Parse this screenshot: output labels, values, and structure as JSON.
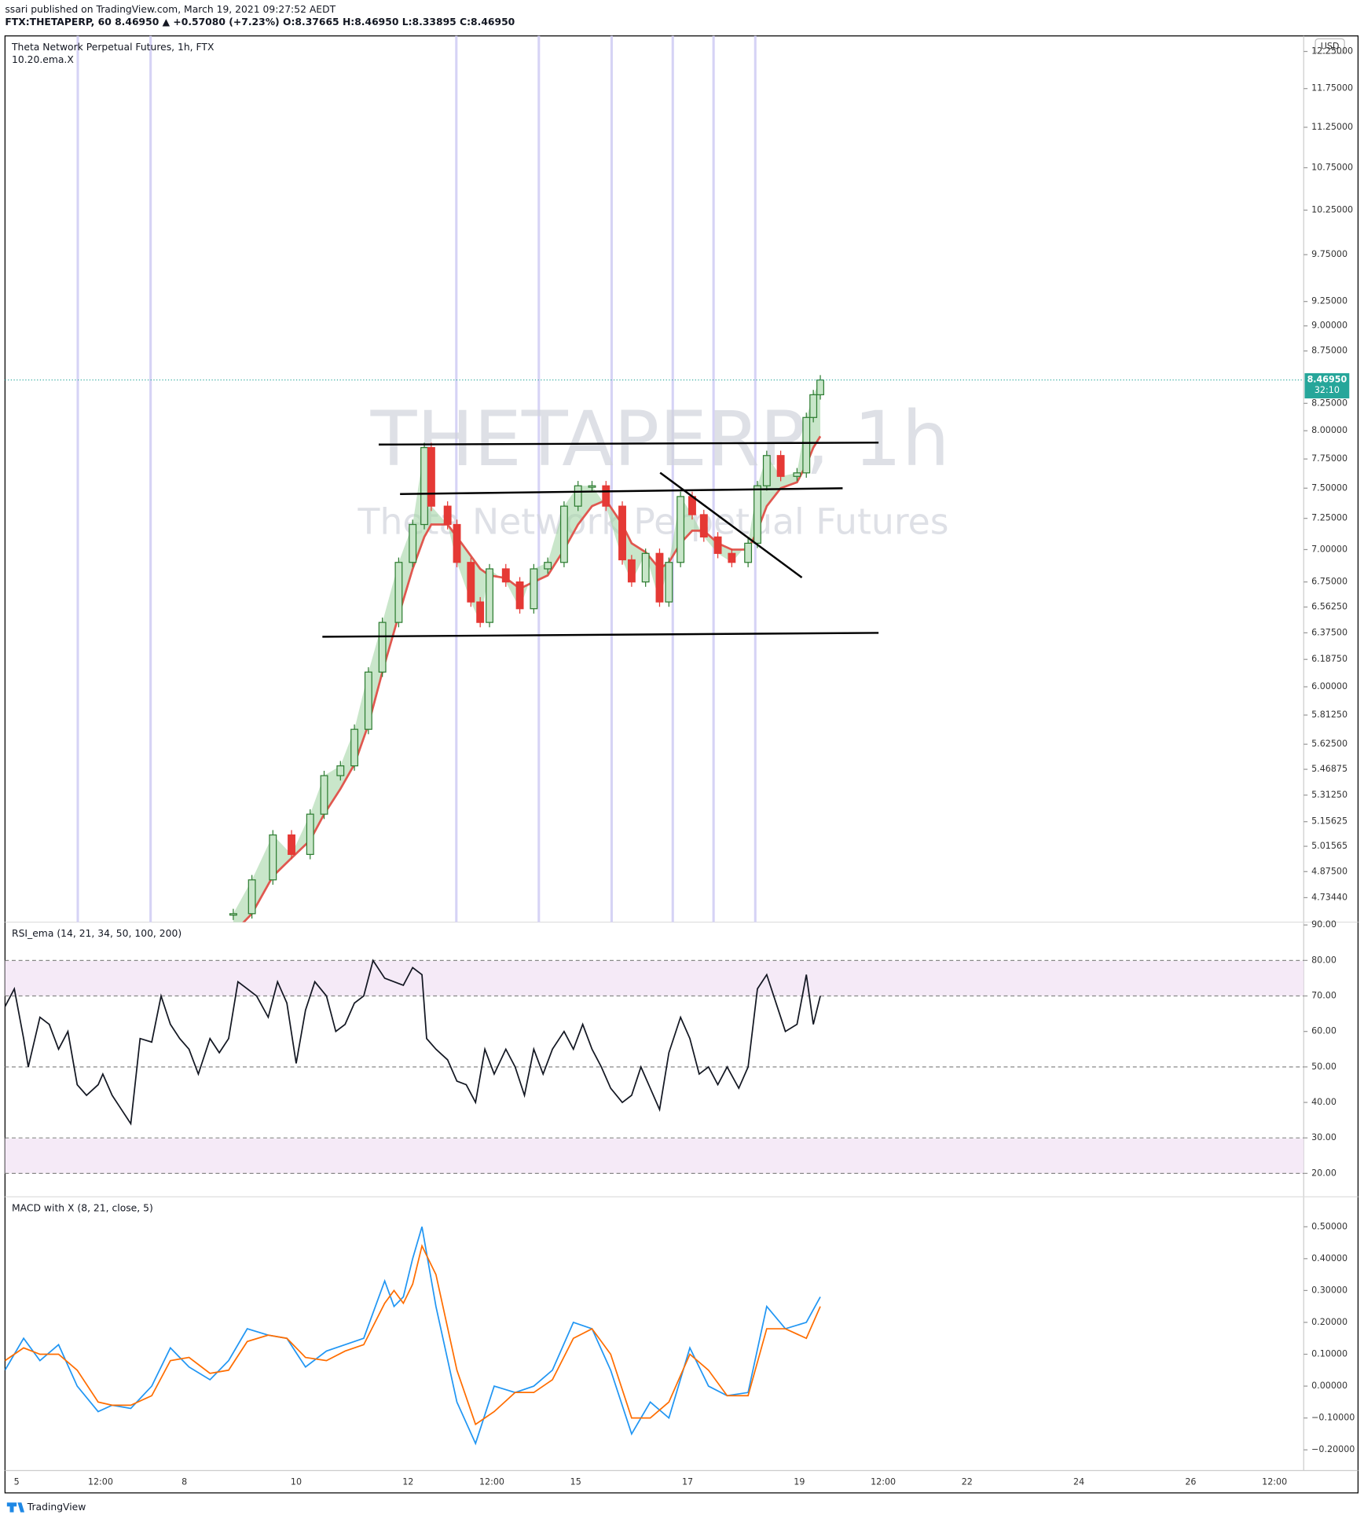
{
  "header": {
    "publisher": "ssari published on TradingView.com, March 19, 2021 09:27:52 AEDT",
    "symbol_line": "FTX:THETAPERP, 60  8.46950 ▲ +0.57080 (+7.23%) O:8.37665 H:8.46950 L:8.33895 C:8.46950"
  },
  "footer": {
    "brand": "TradingView"
  },
  "chart_data": [
    {
      "type": "candlestick",
      "title": "Theta Network Perpetual Futures, 1h, FTX",
      "subtitle": "10.20.ema.X",
      "watermark": "THETAPERP, 1h",
      "watermark_subtitle": "Theta Network Perpetual Futures",
      "currency": "USD",
      "x": [
        93,
        101,
        110,
        118,
        126,
        132,
        139,
        145,
        151,
        157,
        164,
        170,
        175,
        178,
        185,
        189,
        195,
        199,
        203,
        210,
        216,
        222,
        228,
        235,
        241,
        247,
        253,
        260,
        264,
        270,
        276,
        280,
        285,
        290,
        295,
        301,
        307,
        314,
        318,
        322,
        328,
        335,
        339,
        342,
        345
      ],
      "values": [
        4.65,
        4.83,
        5.08,
        4.97,
        5.2,
        5.43,
        5.49,
        5.72,
        6.1,
        6.45,
        6.9,
        7.2,
        7.85,
        7.35,
        7.2,
        6.9,
        6.6,
        6.45,
        6.85,
        6.75,
        6.55,
        6.85,
        6.9,
        7.35,
        7.52,
        7.52,
        7.35,
        6.92,
        6.75,
        6.97,
        6.6,
        6.9,
        7.43,
        7.28,
        7.1,
        6.97,
        6.9,
        7.05,
        7.52,
        7.78,
        7.6,
        7.63,
        8.12,
        8.33,
        8.4695
      ],
      "ema": [
        4.55,
        4.65,
        4.85,
        4.95,
        5.05,
        5.2,
        5.35,
        5.5,
        5.75,
        6.1,
        6.5,
        6.85,
        7.1,
        7.2,
        7.2,
        7.1,
        6.95,
        6.85,
        6.8,
        6.78,
        6.7,
        6.75,
        6.8,
        7.0,
        7.2,
        7.35,
        7.4,
        7.2,
        7.05,
        6.98,
        6.85,
        6.9,
        7.05,
        7.15,
        7.15,
        7.05,
        7.0,
        7.0,
        7.15,
        7.35,
        7.5,
        7.55,
        7.7,
        7.85,
        7.95
      ],
      "up_color": "#2e7d32",
      "down_color": "#e53935",
      "ema_color": "#e0574f",
      "fill_color": "#a5d6a7",
      "last_price": {
        "value": 8.4695,
        "label": "8.46950"
      },
      "countdown": "32:10",
      "last_color": "#26a69a",
      "log_scale": true,
      "ylim": [
        4.606,
        12.466
      ],
      "yticks": [
        {
          "value": 12.25,
          "label": "12.25000"
        },
        {
          "value": 11.75,
          "label": "11.75000"
        },
        {
          "value": 11.25,
          "label": "11.25000"
        },
        {
          "value": 10.75,
          "label": "10.75000"
        },
        {
          "value": 10.25,
          "label": "10.25000"
        },
        {
          "value": 9.75,
          "label": "9.75000"
        },
        {
          "value": 9.25,
          "label": "9.25000"
        },
        {
          "value": 9,
          "label": "9.00000"
        },
        {
          "value": 8.75,
          "label": "8.75000"
        },
        {
          "value": 8.25,
          "label": "8.25000"
        },
        {
          "value": 8,
          "label": "8.00000"
        },
        {
          "value": 7.75,
          "label": "7.75000"
        },
        {
          "value": 7.5,
          "label": "7.50000"
        },
        {
          "value": 7.25,
          "label": "7.25000"
        },
        {
          "value": 7,
          "label": "7.00000"
        },
        {
          "value": 6.75,
          "label": "6.75000"
        },
        {
          "value": 6.5625,
          "label": "6.56250"
        },
        {
          "value": 6.375,
          "label": "6.37500"
        },
        {
          "value": 6.1875,
          "label": "6.18750"
        },
        {
          "value": 6,
          "label": "6.00000"
        },
        {
          "value": 5.8125,
          "label": "5.81250"
        },
        {
          "value": 5.625,
          "label": "5.62500"
        },
        {
          "value": 5.46875,
          "label": "5.46875"
        },
        {
          "value": 5.3125,
          "label": "5.31250"
        },
        {
          "value": 5.15625,
          "label": "5.15625"
        },
        {
          "value": 5.01565,
          "label": "5.01565"
        },
        {
          "value": 4.875,
          "label": "4.87500"
        },
        {
          "value": 4.7344,
          "label": "4.73440"
        }
      ],
      "xlim": [
        -5,
        552.5
      ],
      "xticks": [
        {
          "value": 0,
          "label": "5"
        },
        {
          "value": 36,
          "label": "12:00"
        },
        {
          "value": 72,
          "label": "8"
        },
        {
          "value": 120,
          "label": "10"
        },
        {
          "value": 168,
          "label": "12"
        },
        {
          "value": 204,
          "label": "12:00"
        },
        {
          "value": 240,
          "label": "15"
        },
        {
          "value": 288,
          "label": "17"
        },
        {
          "value": 336,
          "label": "19"
        },
        {
          "value": 372,
          "label": "12:00"
        },
        {
          "value": 408,
          "label": "22"
        },
        {
          "value": 456,
          "label": "24"
        },
        {
          "value": 504,
          "label": "26"
        },
        {
          "value": 540,
          "label": "12:00"
        }
      ]
    },
    {
      "type": "line",
      "title": "RSI_ema (14, 21, 34, 50, 100, 200)",
      "color": "#131722",
      "x": [
        -5,
        -1,
        3,
        5,
        10,
        14,
        18,
        22,
        26,
        30,
        35,
        37,
        41,
        45,
        49,
        53,
        58,
        62,
        66,
        70,
        74,
        78,
        83,
        87,
        91,
        95,
        99,
        103,
        108,
        112,
        116,
        120,
        124,
        128,
        133,
        137,
        141,
        145,
        149,
        153,
        158,
        162,
        166,
        170,
        174,
        176,
        180,
        185,
        189,
        193,
        197,
        201,
        205,
        210,
        214,
        218,
        222,
        226,
        230,
        235,
        239,
        243,
        247,
        251,
        255,
        260,
        264,
        268,
        272,
        276,
        280,
        285,
        289,
        293,
        297,
        301,
        305,
        310,
        314,
        318,
        322,
        326,
        330,
        335,
        339,
        342,
        345
      ],
      "values": [
        67,
        72,
        58,
        50,
        64,
        62,
        55,
        60,
        45,
        42,
        45,
        48,
        42,
        38,
        34,
        58,
        57,
        70,
        62,
        58,
        55,
        48,
        58,
        54,
        58,
        74,
        72,
        70,
        64,
        74,
        68,
        51,
        66,
        74,
        70,
        60,
        62,
        68,
        70,
        80,
        75,
        74,
        73,
        78,
        76,
        58,
        55,
        52,
        46,
        45,
        40,
        55,
        48,
        55,
        50,
        42,
        55,
        48,
        55,
        60,
        55,
        62,
        55,
        50,
        44,
        40,
        42,
        50,
        44,
        38,
        54,
        64,
        58,
        48,
        50,
        45,
        50,
        44,
        50,
        72,
        76,
        68,
        60,
        62,
        76,
        62,
        70
      ],
      "ylim": [
        13.4,
        90.8
      ],
      "yticks": [
        {
          "value": 90,
          "label": "90.00"
        },
        {
          "value": 80,
          "label": "80.00"
        },
        {
          "value": 70,
          "label": "70.00"
        },
        {
          "value": 60,
          "label": "60.00"
        },
        {
          "value": 50,
          "label": "50.00"
        },
        {
          "value": 40,
          "label": "40.00"
        },
        {
          "value": 30,
          "label": "30.00"
        },
        {
          "value": 20,
          "label": "20.00"
        }
      ],
      "dashed_levels": [
        80,
        70,
        50,
        30,
        20
      ]
    },
    {
      "type": "line",
      "title": "MACD with X (8, 21, close, 5)",
      "x": [
        -5,
        3,
        10,
        18,
        26,
        35,
        41,
        49,
        58,
        66,
        74,
        83,
        91,
        99,
        108,
        116,
        124,
        133,
        141,
        149,
        158,
        162,
        166,
        170,
        174,
        180,
        189,
        197,
        205,
        214,
        222,
        230,
        239,
        247,
        255,
        264,
        272,
        280,
        289,
        297,
        305,
        314,
        322,
        330,
        339,
        345
      ],
      "series": [
        {
          "color": "#2196f3",
          "values": [
            0.05,
            0.15,
            0.08,
            0.13,
            0,
            -0.08,
            -0.06,
            -0.07,
            0,
            0.12,
            0.06,
            0.02,
            0.08,
            0.18,
            0.16,
            0.15,
            0.06,
            0.11,
            0.13,
            0.15,
            0.33,
            0.25,
            0.28,
            0.4,
            0.5,
            0.25,
            -0.05,
            -0.18,
            0,
            -0.02,
            0,
            0.05,
            0.2,
            0.18,
            0.05,
            -0.15,
            -0.05,
            -0.1,
            0.12,
            0,
            -0.03,
            -0.02,
            0.25,
            0.18,
            0.2,
            0.28
          ]
        },
        {
          "color": "#ff6d00",
          "values": [
            0.08,
            0.12,
            0.1,
            0.1,
            0.05,
            -0.05,
            -0.06,
            -0.06,
            -0.03,
            0.08,
            0.09,
            0.04,
            0.05,
            0.14,
            0.16,
            0.15,
            0.09,
            0.08,
            0.11,
            0.13,
            0.26,
            0.3,
            0.26,
            0.32,
            0.44,
            0.35,
            0.05,
            -0.12,
            -0.08,
            -0.02,
            -0.02,
            0.02,
            0.15,
            0.18,
            0.1,
            -0.1,
            -0.1,
            -0.05,
            0.1,
            0.05,
            -0.03,
            -0.03,
            0.18,
            0.18,
            0.15,
            0.25
          ]
        }
      ],
      "ylim": [
        -0.265,
        0.594
      ],
      "yticks": [
        {
          "value": 0.5,
          "label": "0.50000"
        },
        {
          "value": 0.4,
          "label": "0.40000"
        },
        {
          "value": 0.3,
          "label": "0.30000"
        },
        {
          "value": 0.2,
          "label": "0.20000"
        },
        {
          "value": 0.1,
          "label": "0.10000"
        },
        {
          "value": 0,
          "label": "0.00000"
        },
        {
          "value": -0.1,
          "label": "−0.10000"
        },
        {
          "value": -0.2,
          "label": "−0.20000"
        }
      ]
    }
  ]
}
